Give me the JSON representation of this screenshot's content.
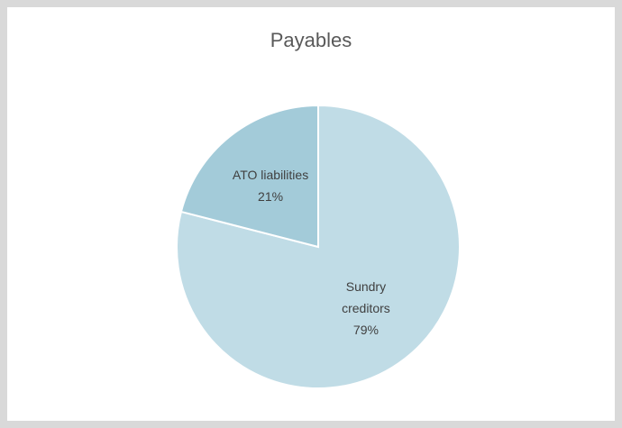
{
  "chart_data": {
    "type": "pie",
    "title": "Payables",
    "categories": [
      "Sundry creditors",
      "ATO liabilities"
    ],
    "values": [
      79,
      21
    ],
    "value_labels": [
      "79%",
      "21%"
    ],
    "colors": [
      "#c0dce6",
      "#a3cbd9"
    ]
  }
}
